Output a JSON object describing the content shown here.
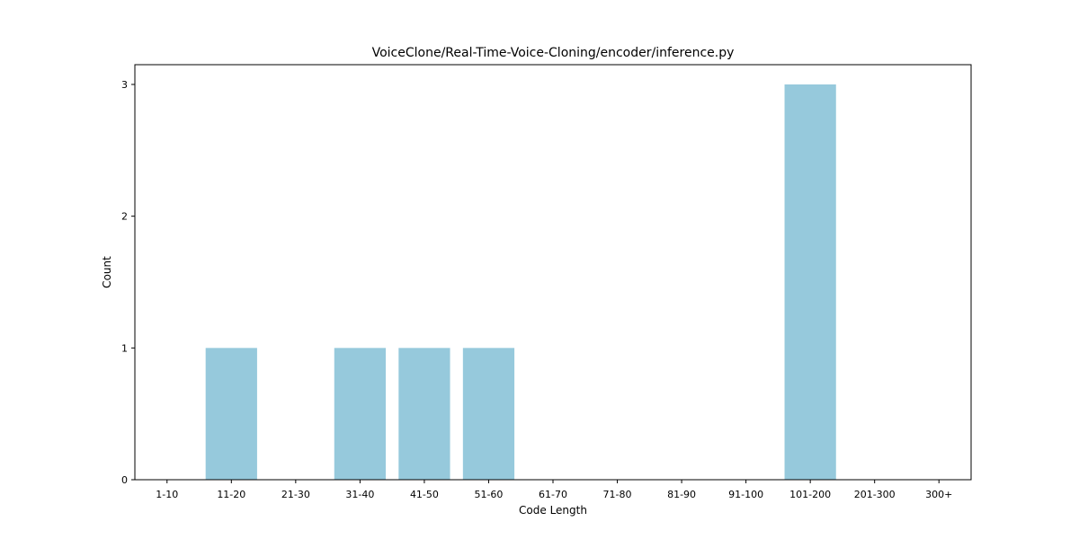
{
  "chart_data": {
    "type": "bar",
    "title": "VoiceClone/Real-Time-Voice-Cloning/encoder/inference.py",
    "xlabel": "Code Length",
    "ylabel": "Count",
    "categories": [
      "1-10",
      "11-20",
      "21-30",
      "31-40",
      "41-50",
      "51-60",
      "61-70",
      "71-80",
      "81-90",
      "91-100",
      "101-200",
      "201-300",
      "300+"
    ],
    "values": [
      0,
      1,
      0,
      1,
      1,
      1,
      0,
      0,
      0,
      0,
      3,
      0,
      0
    ],
    "yticks": [
      0,
      1,
      2,
      3
    ],
    "ylim": [
      0,
      3.15
    ],
    "bar_color": "#96c9dc",
    "grid": false,
    "legend": false
  }
}
